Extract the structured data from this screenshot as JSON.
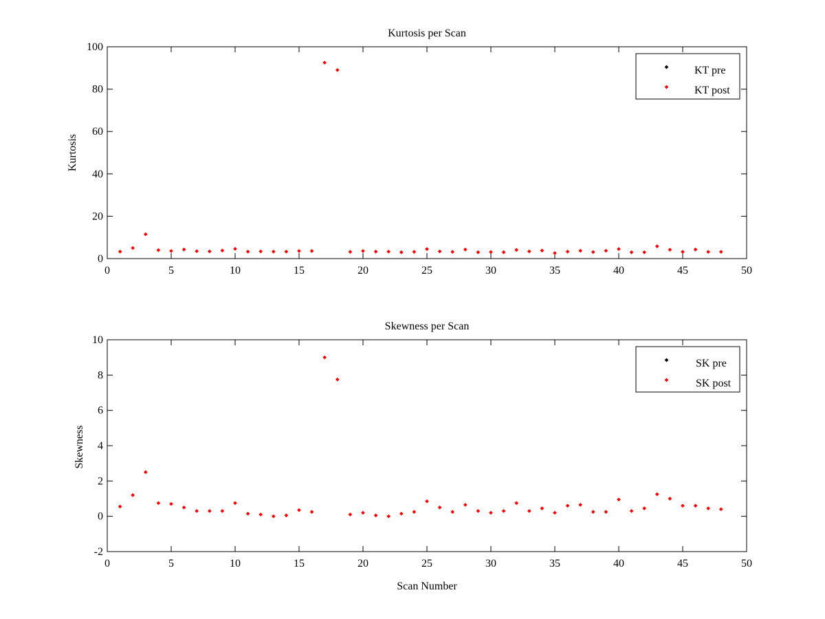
{
  "chart_data": [
    {
      "type": "scatter",
      "title": "Kurtosis per Scan",
      "xlabel": "",
      "ylabel": "Kurtosis",
      "xlim": [
        0,
        50
      ],
      "ylim": [
        0,
        100
      ],
      "xticks": [
        0,
        5,
        10,
        15,
        20,
        25,
        30,
        35,
        40,
        45,
        50
      ],
      "yticks": [
        0,
        20,
        40,
        60,
        80,
        100
      ],
      "grid": false,
      "legend_position": "top-right",
      "series": [
        {
          "name": "KT pre",
          "color": "#000000",
          "x": [],
          "y": []
        },
        {
          "name": "KT post",
          "color": "#ff0000",
          "x": [
            1,
            2,
            3,
            4,
            5,
            6,
            7,
            8,
            9,
            10,
            11,
            12,
            13,
            14,
            15,
            16,
            17,
            18,
            19,
            20,
            21,
            22,
            23,
            24,
            25,
            26,
            27,
            28,
            29,
            30,
            31,
            32,
            33,
            34,
            35,
            36,
            37,
            38,
            39,
            40,
            41,
            42,
            43,
            44,
            45,
            46,
            47,
            48
          ],
          "y": [
            3.3,
            5.0,
            11.5,
            4.0,
            3.6,
            4.3,
            3.5,
            3.4,
            3.8,
            4.6,
            3.3,
            3.4,
            3.3,
            3.3,
            3.6,
            3.6,
            92.5,
            89.0,
            3.2,
            3.6,
            3.3,
            3.3,
            3.0,
            3.2,
            4.5,
            3.4,
            3.2,
            4.3,
            3.0,
            3.1,
            3.0,
            4.1,
            3.4,
            3.8,
            2.6,
            3.3,
            3.7,
            3.1,
            3.7,
            4.5,
            3.0,
            3.0,
            5.8,
            4.2,
            3.2,
            4.3,
            3.2,
            3.2
          ]
        }
      ]
    },
    {
      "type": "scatter",
      "title": "Skewness per Scan",
      "xlabel": "Scan Number",
      "ylabel": "Skewness",
      "xlim": [
        0,
        50
      ],
      "ylim": [
        -2,
        10
      ],
      "xticks": [
        0,
        5,
        10,
        15,
        20,
        25,
        30,
        35,
        40,
        45,
        50
      ],
      "yticks": [
        -2,
        0,
        2,
        4,
        6,
        8,
        10
      ],
      "grid": false,
      "legend_position": "top-right",
      "series": [
        {
          "name": "SK pre",
          "color": "#000000",
          "x": [],
          "y": []
        },
        {
          "name": "SK post",
          "color": "#ff0000",
          "x": [
            1,
            2,
            3,
            4,
            5,
            6,
            7,
            8,
            9,
            10,
            11,
            12,
            13,
            14,
            15,
            16,
            17,
            18,
            19,
            20,
            21,
            22,
            23,
            24,
            25,
            26,
            27,
            28,
            29,
            30,
            31,
            32,
            33,
            34,
            35,
            36,
            37,
            38,
            39,
            40,
            41,
            42,
            43,
            44,
            45,
            46,
            47,
            48
          ],
          "y": [
            0.55,
            1.2,
            2.5,
            0.75,
            0.7,
            0.5,
            0.3,
            0.3,
            0.3,
            0.75,
            0.15,
            0.1,
            0.0,
            0.05,
            0.35,
            0.25,
            9.0,
            7.75,
            0.1,
            0.2,
            0.05,
            0.0,
            0.15,
            0.25,
            0.85,
            0.5,
            0.25,
            0.65,
            0.3,
            0.2,
            0.3,
            0.75,
            0.3,
            0.45,
            0.2,
            0.6,
            0.65,
            0.25,
            0.25,
            0.95,
            0.3,
            0.45,
            1.25,
            1.0,
            0.6,
            0.6,
            0.45,
            0.4
          ]
        }
      ]
    }
  ]
}
